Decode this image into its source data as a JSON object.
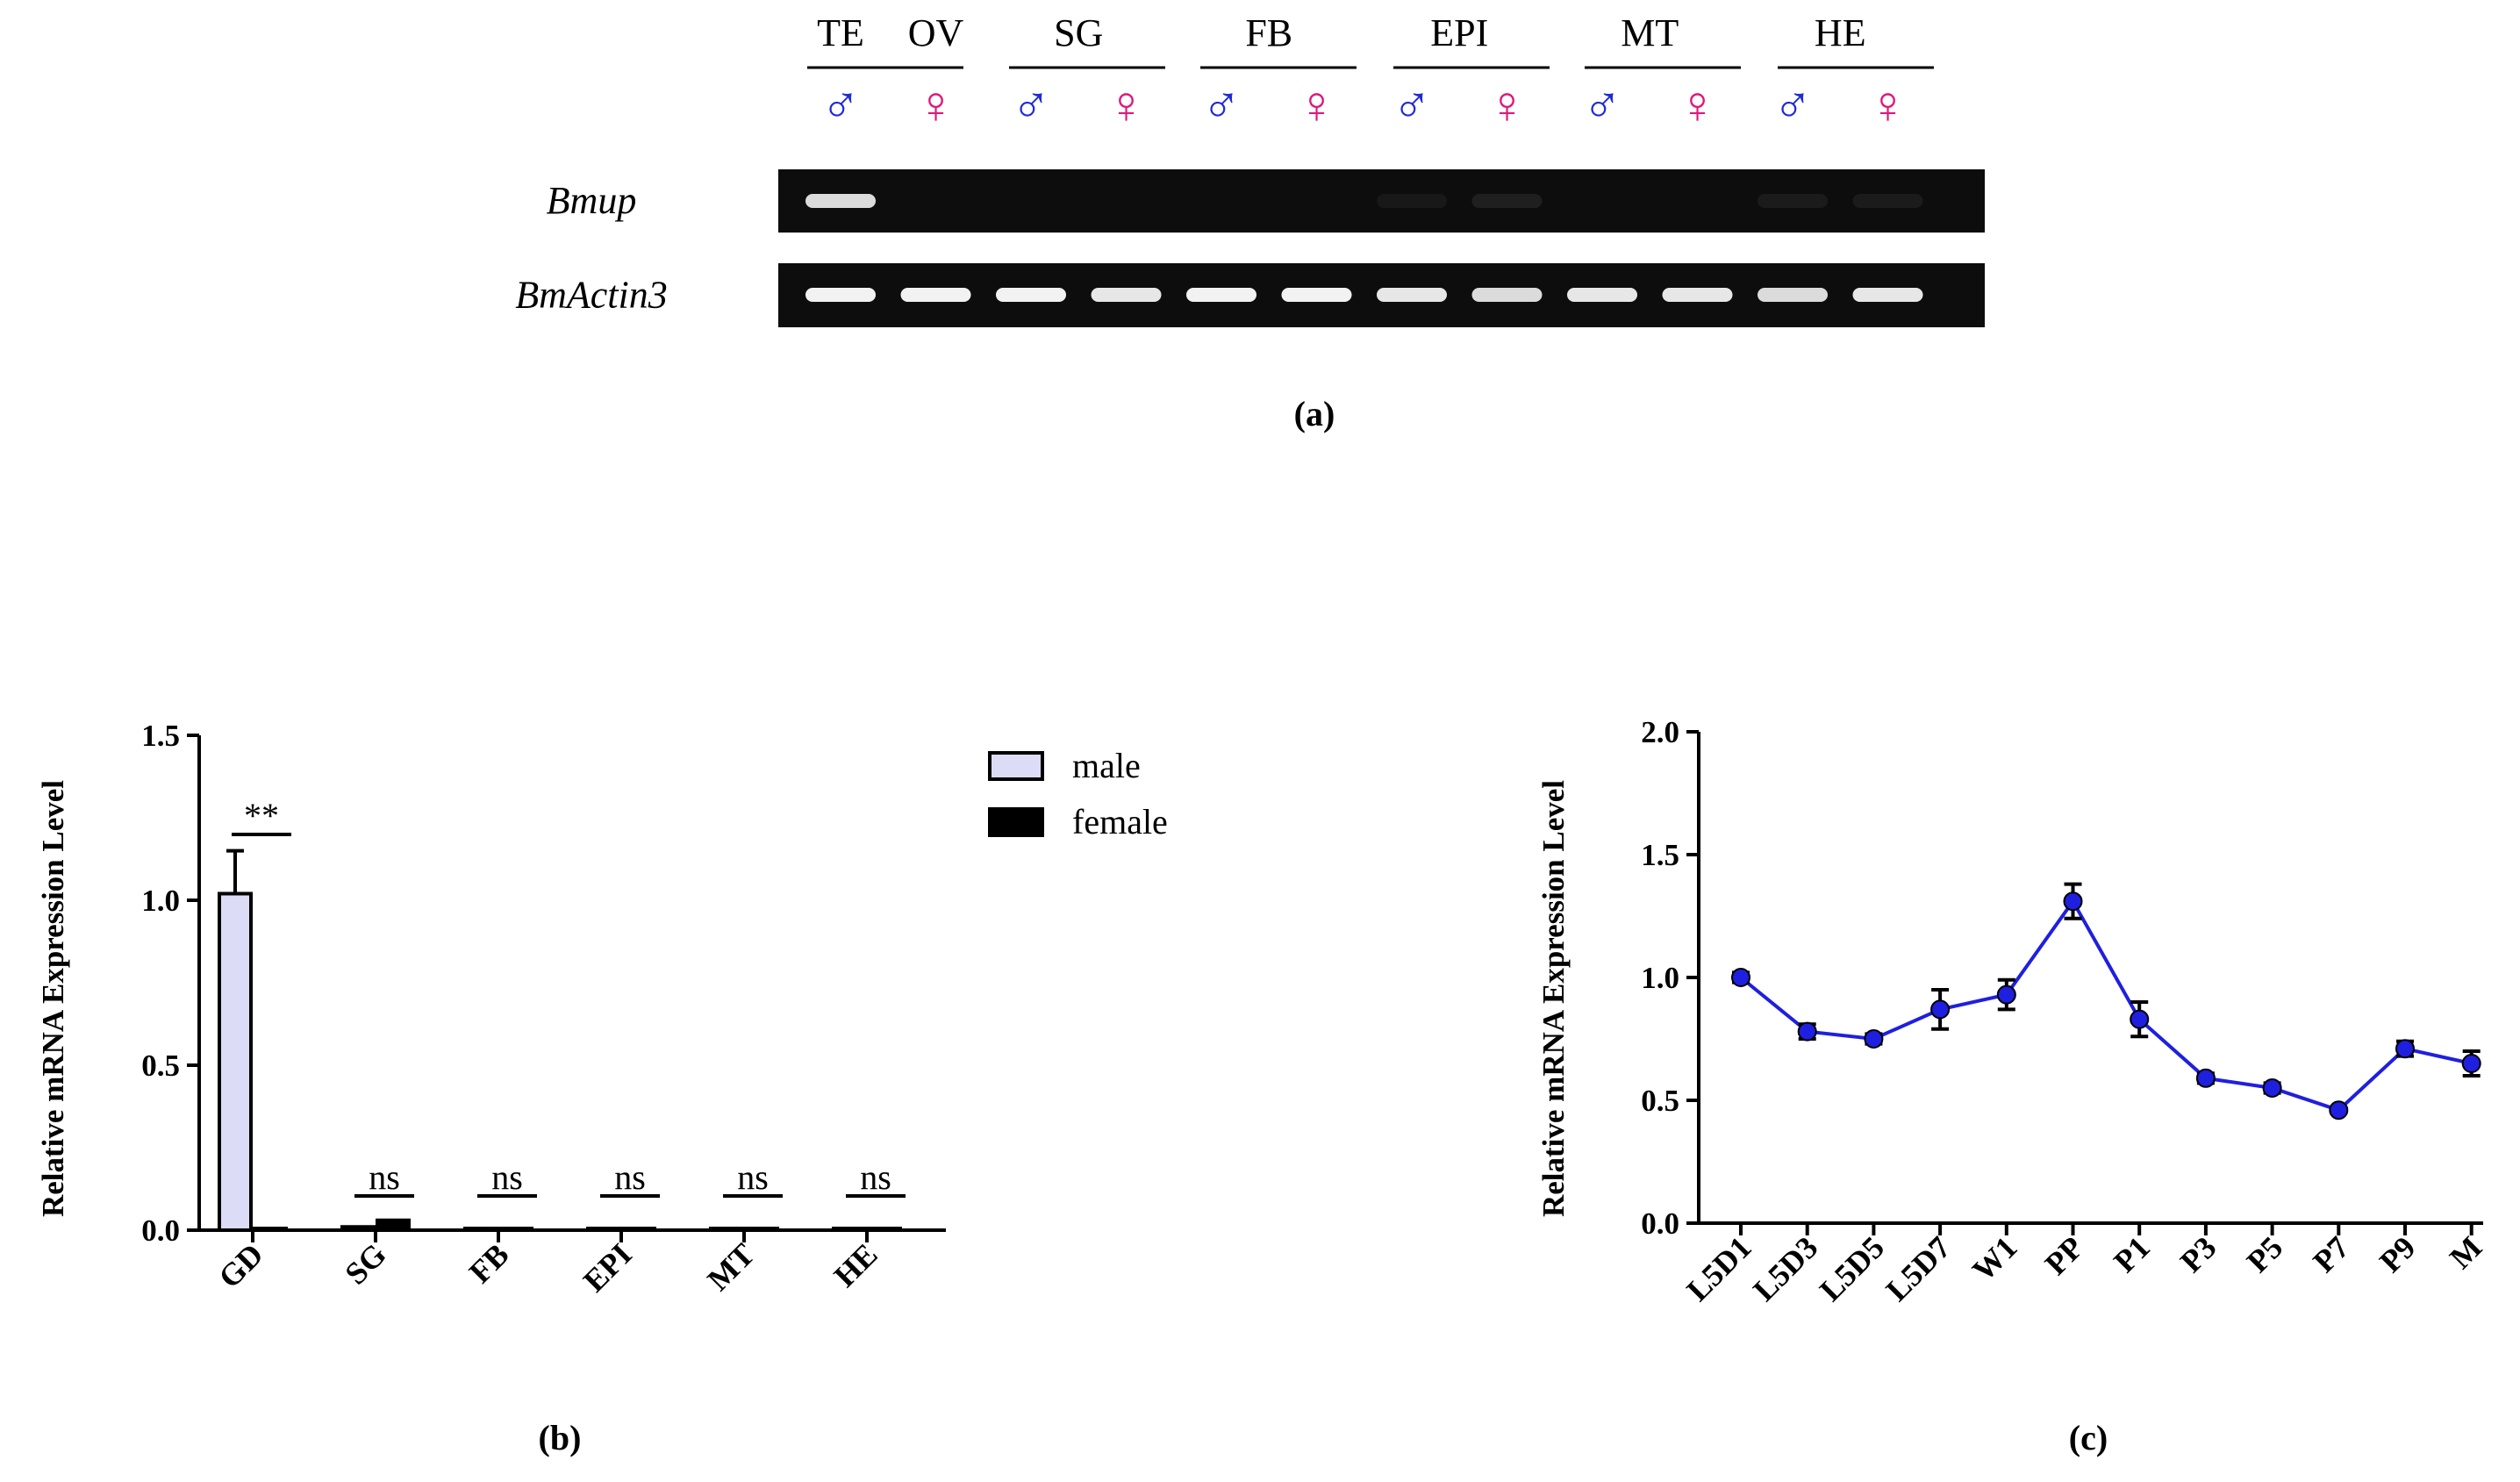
{
  "panel_a": {
    "groups": [
      {
        "label": "TE",
        "lanes": [
          "male"
        ]
      },
      {
        "label": "OV",
        "lanes": [
          "female"
        ]
      },
      {
        "label": "SG",
        "lanes": [
          "male",
          "female"
        ]
      },
      {
        "label": "FB",
        "lanes": [
          "male",
          "female"
        ]
      },
      {
        "label": "EPI",
        "lanes": [
          "male",
          "female"
        ]
      },
      {
        "label": "MT",
        "lanes": [
          "male",
          "female"
        ]
      },
      {
        "label": "HE",
        "lanes": [
          "male",
          "female"
        ]
      }
    ],
    "male_symbol": "♂",
    "female_symbol": "♀",
    "male_color": "#1f2bd6",
    "female_color": "#e0187a",
    "rows": [
      {
        "label": "Bmup",
        "band_intensity": [
          0.9,
          0,
          0,
          0,
          0,
          0,
          0.05,
          0.08,
          0,
          0,
          0.06,
          0.06
        ]
      },
      {
        "label": "BmActin3",
        "band_intensity": [
          1,
          1,
          1,
          0.95,
          1,
          1,
          0.95,
          0.9,
          0.95,
          0.95,
          0.9,
          0.95
        ]
      }
    ],
    "caption": "(a)"
  },
  "chart_data": [
    {
      "type": "bar",
      "categories": [
        "GD",
        "SG",
        "FB",
        "EPI",
        "MT",
        "HE"
      ],
      "series": [
        {
          "name": "male",
          "values": [
            1.02,
            0.01,
            0.005,
            0.005,
            0.003,
            0.003
          ],
          "errors": [
            0.13,
            0.005,
            0.002,
            0.002,
            0.001,
            0.001
          ],
          "fill": "#dcdcf6"
        },
        {
          "name": "female",
          "values": [
            0.0,
            0.03,
            0.004,
            0.005,
            0.002,
            0.002
          ],
          "errors": [
            0.0,
            0.008,
            0.002,
            0.002,
            0.001,
            0.001
          ],
          "fill": "#000000"
        }
      ],
      "significance": [
        "**",
        "ns",
        "ns",
        "ns",
        "ns",
        "ns"
      ],
      "ylabel": "Relative mRNA Expression Level",
      "ylim": [
        0,
        1.5
      ],
      "yticks": [
        "0.0",
        "0.5",
        "1.0",
        "1.5"
      ],
      "legend": "top-right",
      "grid": false,
      "caption": "(b)"
    },
    {
      "type": "line",
      "categories": [
        "L5D1",
        "L5D3",
        "L5D5",
        "L5D7",
        "W1",
        "PP",
        "P1",
        "P3",
        "P5",
        "P7",
        "P9",
        "M"
      ],
      "series": [
        {
          "values": [
            1.0,
            0.78,
            0.75,
            0.87,
            0.93,
            1.31,
            0.83,
            0.59,
            0.55,
            0.46,
            0.71,
            0.65
          ],
          "errors": [
            0.02,
            0.03,
            0.02,
            0.08,
            0.06,
            0.07,
            0.07,
            0.02,
            0.02,
            0.01,
            0.03,
            0.05
          ],
          "color": "#1f1fe0"
        }
      ],
      "ylabel": "Relative mRNA Expression Level",
      "ylim": [
        0,
        2.0
      ],
      "yticks": [
        "0.0",
        "0.5",
        "1.0",
        "1.5",
        "2.0"
      ],
      "grid": false,
      "caption": "(c)"
    }
  ]
}
